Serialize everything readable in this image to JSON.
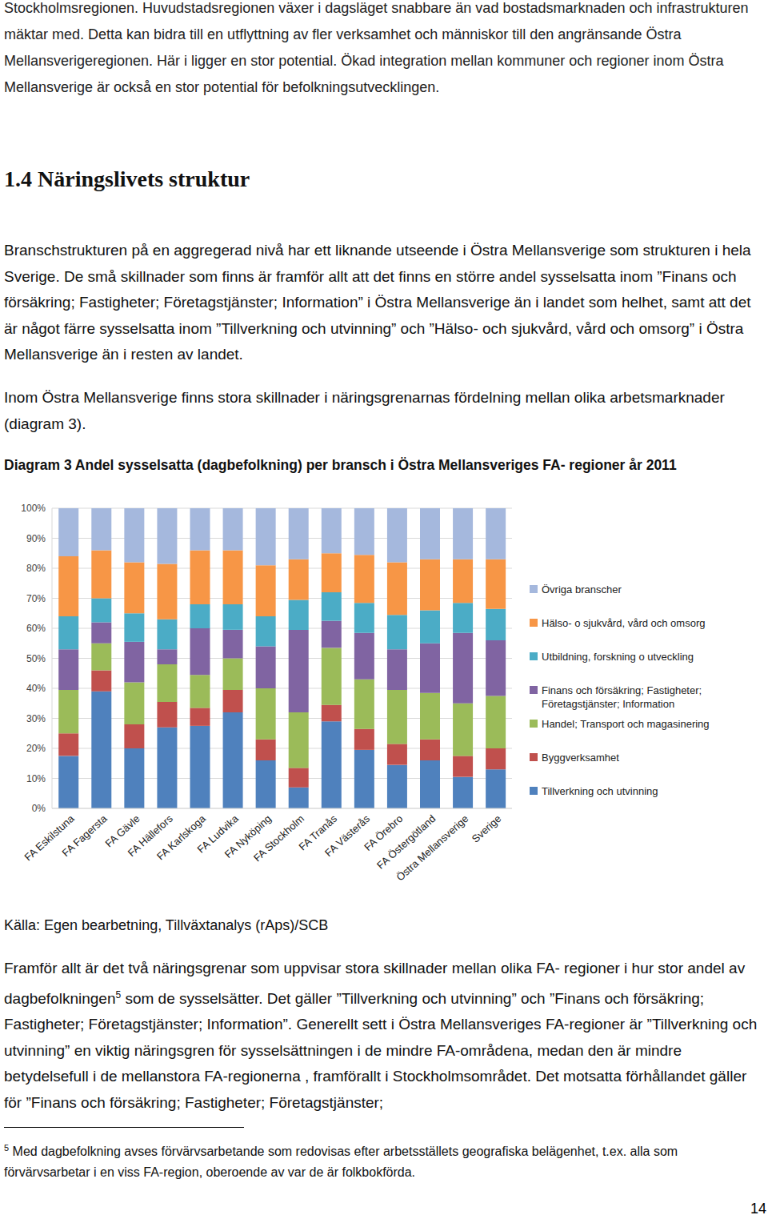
{
  "document": {
    "intro_paragraph": "Stockholmsregionen. Huvudstadsregionen växer i dagsläget snabbare än vad bostadsmarknaden och infrastrukturen mäktar med. Detta kan bidra till en utflyttning av fler verksamhet och människor till den angränsande Östra Mellansverigeregionen. Här i ligger en stor potential. Ökad integration mellan kommuner och regioner inom Östra Mellansverige är också en stor potential för befolkningsutvecklingen.",
    "heading": "1.4 Näringslivets struktur",
    "paragraphs": [
      "Branschstrukturen på en aggregerad nivå har ett liknande utseende i Östra Mellansverige som strukturen i hela Sverige. De små skillnader som finns är framför allt att det finns en större andel sysselsatta inom ”Finans och försäkring; Fastigheter; Företagstjänster; Information” i Östra Mellansverige än i landet som helhet, samt att det är något färre sysselsatta inom ”Tillverkning och utvinning” och ”Hälso- och sjukvård, vård och omsorg” i Östra Mellansverige än i resten av landet.",
      "Inom Östra Mellansverige finns stora skillnader i näringsgrenarnas fördelning mellan olika arbetsmarknader (diagram 3)."
    ],
    "figure_title": "Diagram 3 Andel sysselsatta (dagbefolkning) per bransch i Östra Mellansveriges FA- regioner år 2011",
    "source": "Källa: Egen bearbetning, Tillväxtanalys (rAps)/SCB",
    "closing_paragraph": {
      "before_note": "Framför allt är det två näringsgrenar som uppvisar stora skillnader mellan olika FA- regioner i hur stor andel av dagbefolkningen",
      "note_mark": "5",
      "after_note": " som de sysselsätter.  Det gäller ”Tillverkning och utvinning” och ”Finans och försäkring; Fastigheter; Företagstjänster; Information”. Generellt sett i Östra Mellansveriges FA-regioner är ”Tillverkning och utvinning” en viktig näringsgren för sysselsättningen i de mindre FA-områdena, medan den är mindre betydelsefull i de mellanstora FA-regionerna , framförallt i Stockholmsområdet. Det motsatta förhållandet gäller för ”Finans och försäkring; Fastigheter; Företagstjänster;"
    },
    "footnote": {
      "mark": "5",
      "text": "Med dagbefolkning avses förvärvsarbetande som redovisas efter arbetsställets geografiska belägenhet, t.ex. alla som förvärvsarbetar i en viss FA-region, oberoende av var de är folkbokförda."
    },
    "page_number": "14"
  },
  "chart_data": {
    "type": "bar",
    "stacked": true,
    "grid": true,
    "legend": "right",
    "categories": [
      "FA Eskilstuna",
      "FA Fagersta",
      "FA Gävle",
      "FA Hällefors",
      "FA Karlskoga",
      "FA Ludvika",
      "FA Nyköping",
      "FA Stockholm",
      "FA Tranås",
      "FA Västerås",
      "FA Örebro",
      "FA Östergötland",
      "Östra Mellansverige",
      "Sverige"
    ],
    "ylim": [
      0,
      100
    ],
    "yticks": [
      {
        "value": 0,
        "label": "0%"
      },
      {
        "value": 10,
        "label": "10%"
      },
      {
        "value": 20,
        "label": "20%"
      },
      {
        "value": 30,
        "label": "30%"
      },
      {
        "value": 40,
        "label": "40%"
      },
      {
        "value": 50,
        "label": "50%"
      },
      {
        "value": 60,
        "label": "60%"
      },
      {
        "value": 70,
        "label": "70%"
      },
      {
        "value": 80,
        "label": "80%"
      },
      {
        "value": 90,
        "label": "90%"
      },
      {
        "value": 100,
        "label": "100%"
      }
    ],
    "series": [
      {
        "name": "Tillverkning och utvinning",
        "color": "#4f81bd",
        "values": [
          17.5,
          39,
          20,
          27,
          27.5,
          32,
          16,
          7,
          29,
          19.5,
          14.5,
          16,
          10.5,
          13
        ]
      },
      {
        "name": "Byggverksamhet",
        "color": "#c0504d",
        "values": [
          7.5,
          7,
          8,
          8.5,
          6,
          7.5,
          7,
          6.5,
          5.5,
          7,
          7,
          7,
          7,
          7
        ]
      },
      {
        "name": "Handel; Transport och magasinering",
        "color": "#9bbb59",
        "values": [
          14.5,
          9,
          14,
          12.5,
          11,
          10.5,
          17,
          18.5,
          19,
          16.5,
          18,
          15.5,
          17.5,
          17.5
        ]
      },
      {
        "name": "Finans och försäkring; Fastigheter; Företagstjänster; Information",
        "color": "#8064a2",
        "values": [
          13.5,
          7,
          13.5,
          5,
          15.5,
          9.5,
          14,
          27.5,
          9,
          15.5,
          13.5,
          16.5,
          23.5,
          18.5
        ]
      },
      {
        "name": "Utbildning, forskning o utveckling",
        "color": "#4bacc6",
        "values": [
          11,
          8,
          9.5,
          10,
          8,
          8.5,
          10,
          10,
          9.5,
          10,
          11.5,
          11,
          10,
          10.5
        ]
      },
      {
        "name": "Hälso- o sjukvård, vård och omsorg",
        "color": "#f79646",
        "values": [
          20,
          16,
          17,
          18.5,
          18,
          18,
          17,
          13.5,
          13,
          16,
          17.5,
          17,
          14.5,
          16.5
        ]
      },
      {
        "name": "Övriga branscher",
        "color": "#a5b8dd",
        "values": [
          16,
          14,
          18,
          18.5,
          14,
          14,
          19,
          17,
          15,
          15.5,
          18,
          17,
          17,
          17
        ]
      }
    ]
  }
}
